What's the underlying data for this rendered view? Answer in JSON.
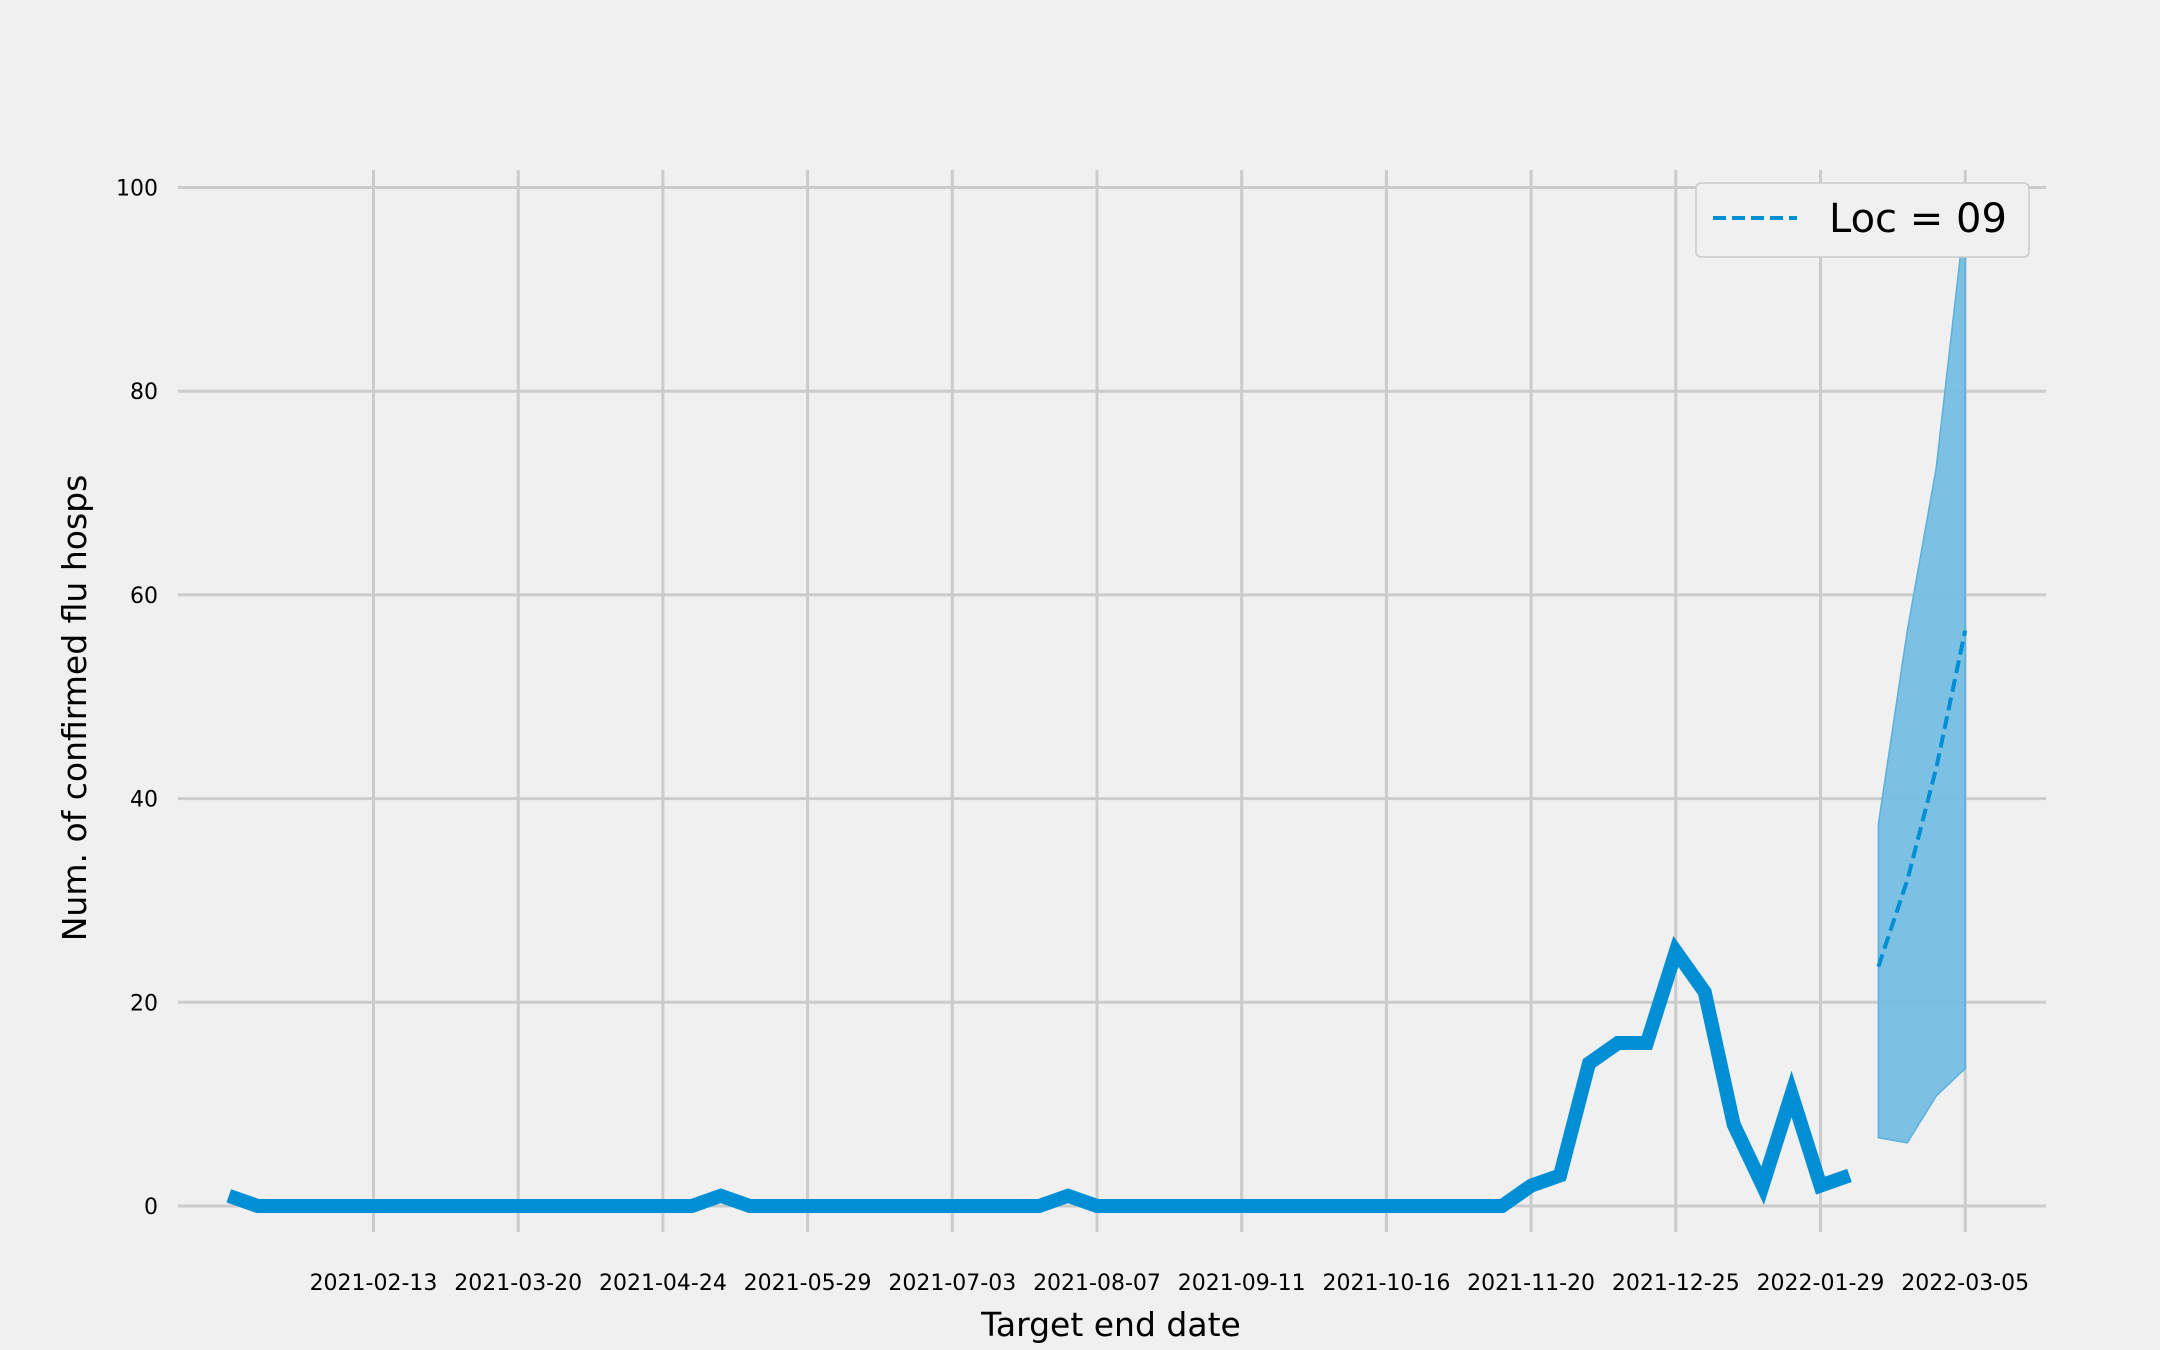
{
  "chart_data": {
    "type": "line",
    "title": "",
    "xlabel": "Target end date",
    "ylabel": "Num. of confirmed flu hosps",
    "x_tick_labels": [
      "2021-02-13",
      "2021-03-20",
      "2021-04-24",
      "2021-05-29",
      "2021-07-03",
      "2021-08-07",
      "2021-09-11",
      "2021-10-16",
      "2021-11-20",
      "2021-12-25",
      "2022-01-29",
      "2022-03-05"
    ],
    "y_ticks": [
      0,
      20,
      40,
      60,
      80,
      100
    ],
    "ylim": [
      -3,
      103
    ],
    "grid": true,
    "legend_position": "top-right",
    "colors": {
      "line": "#008fd5",
      "band": "#75bde2",
      "grid": "#cbcbcb",
      "background": "#f0f0f0"
    },
    "series": [
      {
        "style": "solid",
        "x": [
          "2021-01-09",
          "2021-01-16",
          "2021-01-23",
          "2021-01-30",
          "2021-02-06",
          "2021-02-13",
          "2021-02-20",
          "2021-02-27",
          "2021-03-06",
          "2021-03-13",
          "2021-03-20",
          "2021-03-27",
          "2021-04-03",
          "2021-04-10",
          "2021-04-17",
          "2021-04-24",
          "2021-05-01",
          "2021-05-08",
          "2021-05-15",
          "2021-05-22",
          "2021-05-29",
          "2021-06-05",
          "2021-06-12",
          "2021-06-19",
          "2021-06-26",
          "2021-07-03",
          "2021-07-10",
          "2021-07-17",
          "2021-07-24",
          "2021-07-31",
          "2021-08-07",
          "2021-08-14",
          "2021-08-21",
          "2021-08-28",
          "2021-09-04",
          "2021-09-11",
          "2021-09-18",
          "2021-09-25",
          "2021-10-02",
          "2021-10-09",
          "2021-10-16",
          "2021-10-23",
          "2021-10-30",
          "2021-11-06",
          "2021-11-13",
          "2021-11-20",
          "2021-11-27",
          "2021-12-04",
          "2021-12-11",
          "2021-12-18",
          "2021-12-25",
          "2022-01-01",
          "2022-01-08",
          "2022-01-15",
          "2022-01-22",
          "2022-01-29",
          "2022-02-05"
        ],
        "values": [
          1,
          0,
          0,
          0,
          0,
          0,
          0,
          0,
          0,
          0,
          0,
          0,
          0,
          0,
          0,
          0,
          0,
          1,
          0,
          0,
          0,
          0,
          0,
          0,
          0,
          0,
          0,
          0,
          0,
          1,
          0,
          0,
          0,
          0,
          0,
          0,
          0,
          0,
          0,
          0,
          0,
          0,
          0,
          0,
          0,
          2,
          3,
          14,
          16,
          16,
          25,
          21,
          8,
          2,
          11,
          2,
          3
        ]
      },
      {
        "name": "Loc = 09",
        "style": "dashed",
        "x": [
          "2022-02-12",
          "2022-02-19",
          "2022-02-26",
          "2022-03-05"
        ],
        "values": [
          23.5,
          32,
          43,
          56.5
        ],
        "lower": [
          6.7,
          6.2,
          10.8,
          13.5
        ],
        "upper": [
          37.5,
          56.5,
          72.5,
          97.5
        ]
      }
    ]
  }
}
